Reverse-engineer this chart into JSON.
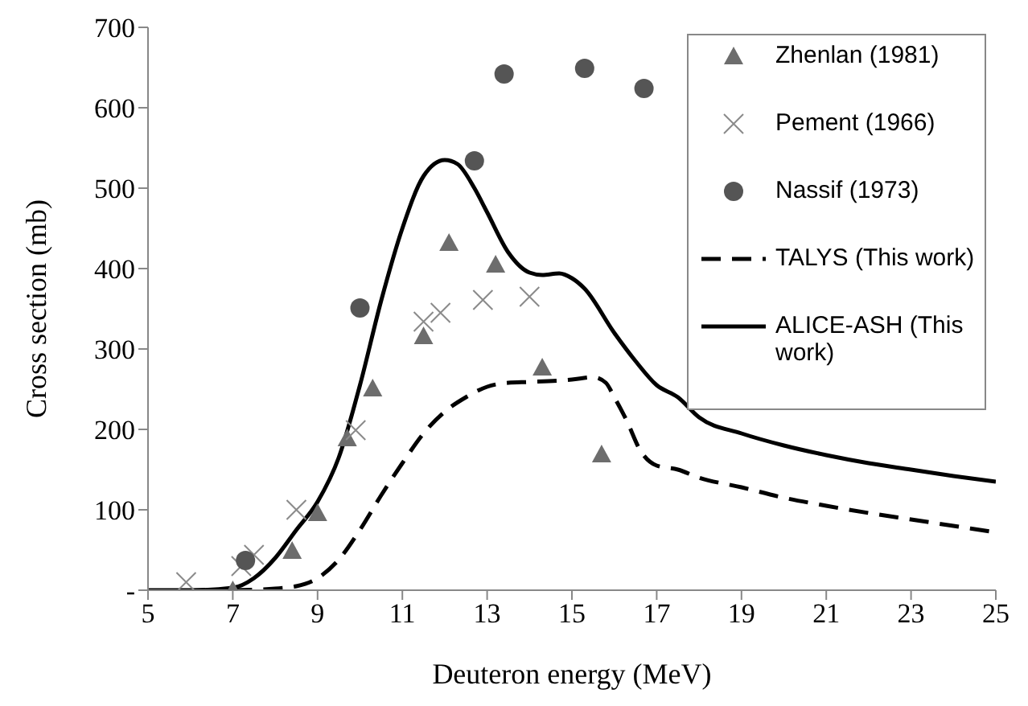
{
  "chart_data": {
    "type": "scatter",
    "xlabel": "Deuteron energy (MeV)",
    "ylabel": "Cross section  (mb)",
    "xlim": [
      5,
      25
    ],
    "xticks": [
      5,
      7,
      9,
      11,
      13,
      15,
      17,
      19,
      21,
      23,
      25
    ],
    "ylim": [
      0,
      700
    ],
    "yticks": [
      {
        "value": 0,
        "label": "-"
      },
      100,
      200,
      300,
      400,
      500,
      600,
      700
    ],
    "grid": false,
    "legend": "top right",
    "series": [
      {
        "name": "Zhenlan (1981)",
        "marker": "triangle",
        "color": "#6d6d6d",
        "x": [
          7.0,
          8.4,
          9.0,
          9.7,
          10.3,
          11.5,
          12.1,
          13.2,
          14.3,
          15.7
        ],
        "values": [
          0,
          49,
          96,
          189,
          251,
          316,
          432,
          405,
          277,
          169
        ]
      },
      {
        "name": "Pement (1966)",
        "marker": "cross",
        "color": "#8a8a8a",
        "x": [
          5.9,
          7.2,
          7.5,
          8.5,
          9.9,
          11.5,
          11.9,
          12.9,
          14.0
        ],
        "values": [
          10,
          30,
          44,
          100,
          199,
          334,
          345,
          361,
          365
        ]
      },
      {
        "name": "Nassif (1973)",
        "marker": "circle",
        "color": "#555555",
        "x": [
          7.3,
          10.0,
          12.7,
          13.4,
          15.3,
          16.7
        ],
        "values": [
          37,
          351,
          534,
          642,
          649,
          624
        ]
      },
      {
        "name": "TALYS (This work)",
        "type": "line",
        "marker": "none",
        "line_style": "dashed",
        "color": "#000000",
        "x": [
          7,
          8,
          8.5,
          9,
          9.5,
          10,
          10.5,
          11,
          11.5,
          12,
          12.5,
          13,
          13.5,
          14,
          15,
          15.5,
          15.8,
          16,
          16.3,
          16.6,
          17,
          17.5,
          18,
          19,
          20,
          21,
          22,
          23,
          24,
          25
        ],
        "values": [
          0,
          2,
          5,
          15,
          38,
          75,
          118,
          158,
          195,
          222,
          240,
          253,
          258,
          259,
          262,
          265,
          258,
          240,
          210,
          175,
          155,
          150,
          140,
          128,
          115,
          105,
          96,
          88,
          80,
          72
        ]
      },
      {
        "name": "ALICE-ASH (This work)",
        "type": "line",
        "marker": "none",
        "line_style": "solid",
        "color": "#000000",
        "x": [
          5,
          6,
          7,
          7.5,
          8,
          8.5,
          9,
          9.5,
          10,
          10.5,
          11,
          11.5,
          12,
          12.3,
          12.7,
          13,
          13.5,
          14,
          14.3,
          14.7,
          15,
          15.3,
          16,
          16.5,
          17,
          17.5,
          18,
          19,
          20,
          21,
          22,
          23,
          24,
          25
        ],
        "values": [
          0,
          0,
          3,
          15,
          40,
          75,
          110,
          165,
          255,
          360,
          450,
          515,
          535,
          530,
          500,
          470,
          420,
          395,
          392,
          394,
          388,
          375,
          320,
          285,
          255,
          240,
          215,
          195,
          180,
          168,
          158,
          150,
          142,
          135
        ]
      }
    ]
  }
}
